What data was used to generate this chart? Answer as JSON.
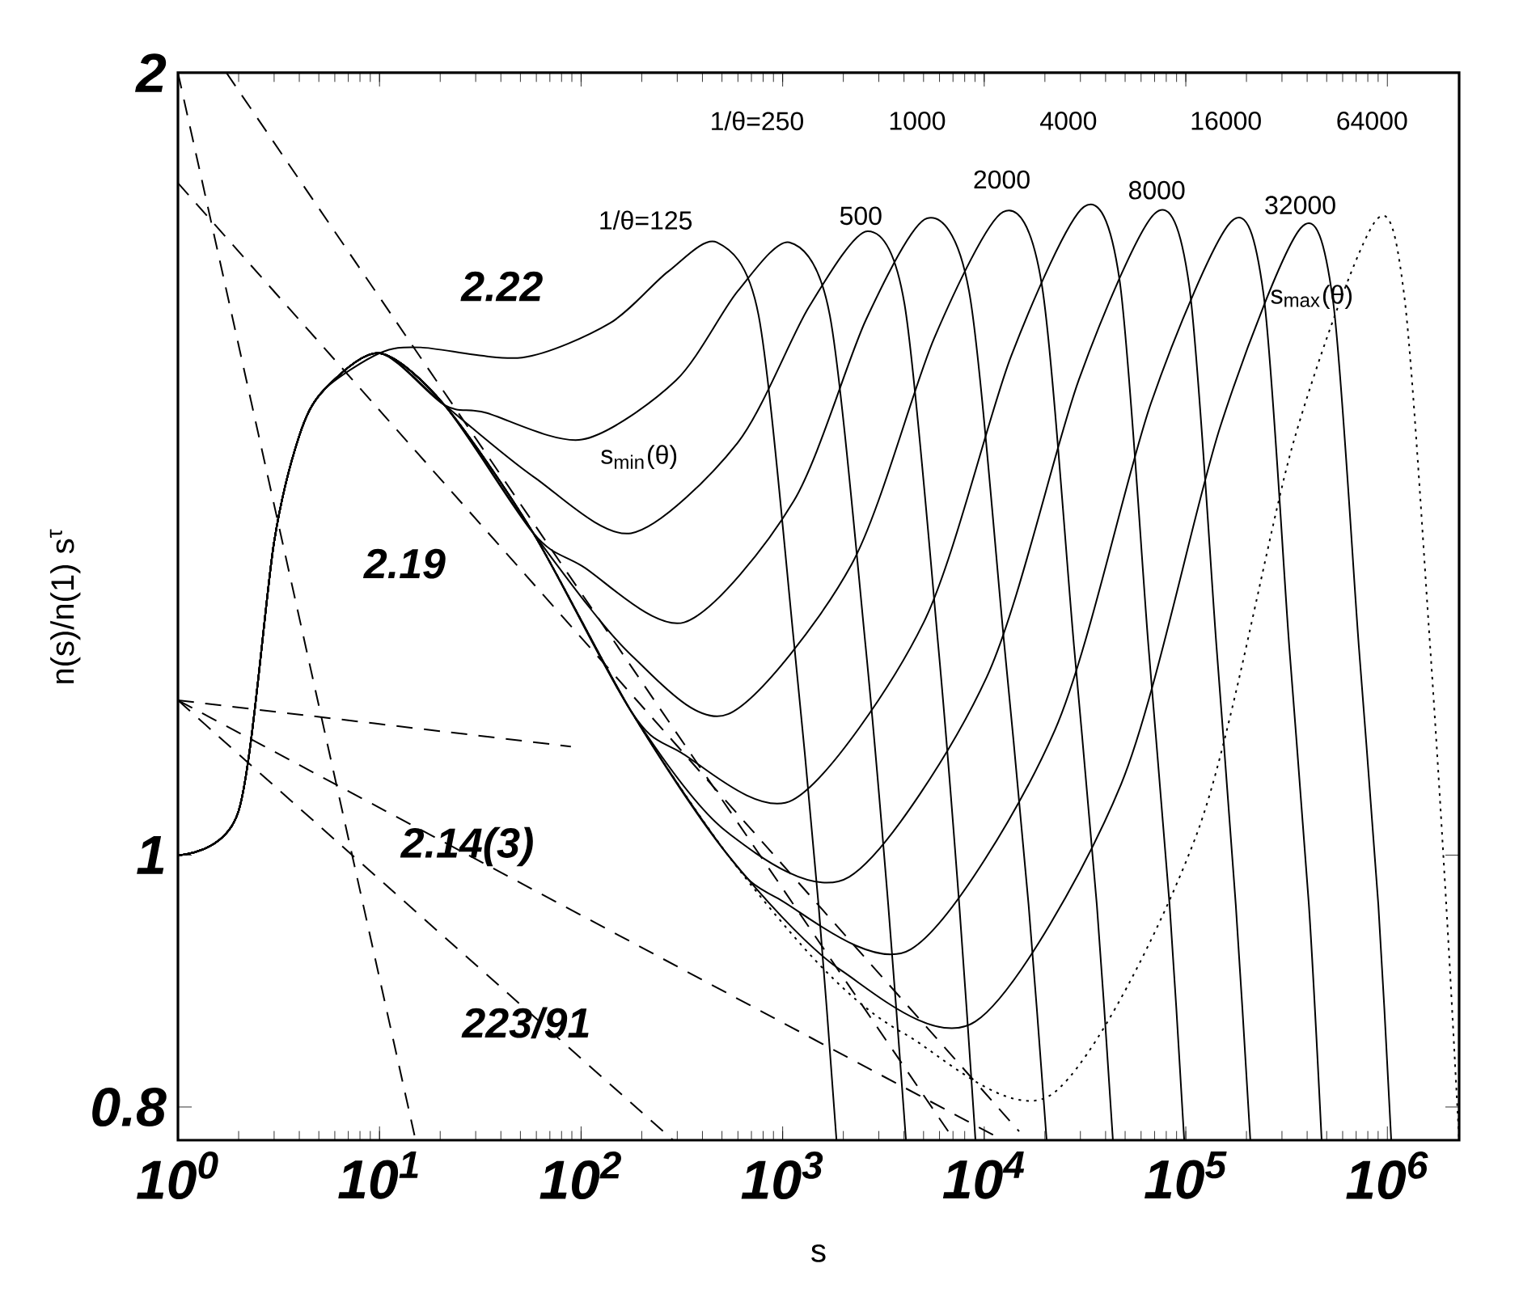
{
  "chart_data": {
    "type": "line",
    "xlabel": "s",
    "ylabel": "n(s)/n(1) s$^{τ}$",
    "log": "xy",
    "marker": "none",
    "xlim": [
      1,
      2270000
    ],
    "ylim": [
      0.777,
      2
    ],
    "xticks": [
      {
        "value": 1,
        "label": "10$^{0}$"
      },
      {
        "value": 10,
        "label": "10$^{1}$"
      },
      {
        "value": 100,
        "label": "10$^{2}$"
      },
      {
        "value": 1000,
        "label": "10$^{3}$"
      },
      {
        "value": 10000,
        "label": "10$^{4}$"
      },
      {
        "value": 100000,
        "label": "10$^{5}$"
      },
      {
        "value": 1000000,
        "label": "10$^{6}$"
      }
    ],
    "yticks": [
      0.8,
      1,
      2
    ],
    "series": [
      {
        "color": "#000000",
        "line_style": "solid",
        "x": [
          1,
          2,
          3,
          4,
          5.3,
          10,
          16,
          51,
          139,
          270,
          471,
          760,
          1143,
          1507,
          1850
        ],
        "values": [
          1,
          1.04,
          1.32,
          1.45,
          1.51,
          1.56,
          1.568,
          1.554,
          1.602,
          1.677,
          1.721,
          1.613,
          1.203,
          0.957,
          0.777
        ]
      },
      {
        "color": "#000000",
        "line_style": "solid",
        "x": [
          1,
          2,
          3,
          4,
          5.3,
          10,
          21,
          33.5,
          101,
          296,
          598,
          1080,
          1715,
          2580,
          3340,
          4090
        ],
        "values": [
          1,
          1.04,
          1.32,
          1.45,
          1.51,
          1.56,
          1.49,
          1.48,
          1.445,
          1.523,
          1.648,
          1.721,
          1.613,
          1.203,
          0.957,
          0.777
        ]
      },
      {
        "color": "#000000",
        "line_style": "solid",
        "x": [
          1,
          2,
          3,
          4,
          5.3,
          10,
          21,
          58.3,
          177,
          598,
          1349,
          2630,
          4020,
          5920,
          7520,
          9050
        ],
        "values": [
          1,
          1.04,
          1.32,
          1.45,
          1.51,
          1.56,
          1.49,
          1.398,
          1.33,
          1.441,
          1.625,
          1.738,
          1.63,
          1.203,
          0.957,
          0.777
        ]
      },
      {
        "color": "#000000",
        "line_style": "solid",
        "x": [
          1,
          2,
          3,
          4,
          5.3,
          10,
          21,
          58,
          101,
          325,
          1132,
          2600,
          5200,
          8410,
          12600,
          16600,
          20400
        ],
        "values": [
          1,
          1.04,
          1.32,
          1.45,
          1.51,
          1.56,
          1.49,
          1.33,
          1.292,
          1.229,
          1.368,
          1.608,
          1.758,
          1.648,
          1.203,
          0.957,
          0.777
        ]
      },
      {
        "color": "#000000",
        "line_style": "solid",
        "x": [
          1,
          2,
          3,
          4,
          5.3,
          10,
          21,
          58,
          177,
          535,
          2200,
          5650,
          12400,
          19300,
          27900,
          36200,
          43500
        ],
        "values": [
          1,
          1.04,
          1.32,
          1.45,
          1.51,
          1.56,
          1.49,
          1.33,
          1.194,
          1.133,
          1.294,
          1.581,
          1.768,
          1.658,
          1.203,
          0.957,
          0.777
        ]
      },
      {
        "color": "#000000",
        "line_style": "solid",
        "x": [
          1,
          2,
          3,
          4,
          5.3,
          10,
          21,
          58,
          177,
          308,
          1120,
          5010,
          13600,
          31200,
          46900,
          65300,
          83100,
          98200
        ],
        "values": [
          1,
          1.04,
          1.32,
          1.45,
          1.51,
          1.56,
          1.49,
          1.33,
          1.136,
          1.096,
          1.05,
          1.229,
          1.556,
          1.776,
          1.665,
          1.203,
          0.957,
          0.777
        ]
      },
      {
        "color": "#000000",
        "line_style": "solid",
        "x": [
          1,
          2,
          3,
          4,
          5.3,
          10,
          21,
          58,
          177,
          535,
          2140,
          10300,
          29500,
          70400,
          104000,
          142000,
          177000,
          209000
        ],
        "values": [
          1,
          1.04,
          1.32,
          1.45,
          1.51,
          1.56,
          1.49,
          1.33,
          1.136,
          1.02,
          0.981,
          1.171,
          1.524,
          1.766,
          1.656,
          1.203,
          0.957,
          0.777
        ]
      },
      {
        "color": "#000000",
        "line_style": "solid",
        "x": [
          1,
          2,
          3,
          4,
          5.3,
          10,
          21,
          58,
          177,
          535,
          933,
          4330,
          22400,
          67100,
          168000,
          243000,
          326000,
          408000,
          472000
        ],
        "values": [
          1,
          1.04,
          1.32,
          1.45,
          1.51,
          1.56,
          1.49,
          1.33,
          1.136,
          1.0,
          0.963,
          0.92,
          1.117,
          1.492,
          1.753,
          1.644,
          1.203,
          0.957,
          0.777
        ]
      },
      {
        "color": "#000000",
        "line_style": "solid",
        "x": [
          1,
          2,
          3,
          4,
          5.3,
          10,
          21,
          58,
          177,
          535,
          1950,
          9050,
          47800,
          148000,
          372000,
          537000,
          722000,
          902000,
          1045000
        ],
        "values": [
          1,
          1.04,
          1.32,
          1.45,
          1.51,
          1.56,
          1.49,
          1.33,
          1.136,
          1.0,
          0.903,
          0.863,
          1.065,
          1.461,
          1.743,
          1.635,
          1.203,
          0.957,
          0.777
        ]
      },
      {
        "color": "#000000",
        "line_style": "dotted",
        "x": [
          1,
          2,
          3,
          4,
          5.3,
          10,
          21,
          58,
          177,
          535,
          1620,
          4090,
          21600,
          114000,
          345000,
          869000,
          1210000,
          1630000,
          1960000,
          2270000
        ],
        "values": [
          1,
          1.04,
          1.32,
          1.45,
          1.51,
          1.56,
          1.49,
          1.33,
          1.136,
          1.0,
          0.903,
          0.853,
          0.809,
          1.02,
          1.445,
          1.753,
          1.644,
          1.203,
          0.957,
          0.777
        ]
      },
      {
        "color": "#000000",
        "line_style": "dashed",
        "x": [
          1,
          15.1
        ],
        "values": [
          2,
          0.777
        ]
      },
      {
        "color": "#000000",
        "line_style": "dashed",
        "x": [
          1.74,
          7100
        ],
        "values": [
          2,
          0.777
        ]
      },
      {
        "color": "#000000",
        "line_style": "dashed",
        "x": [
          1,
          14900
        ],
        "values": [
          1.814,
          0.783
        ]
      },
      {
        "color": "#000000",
        "line_style": "dashed",
        "x": [
          1,
          89
        ],
        "values": [
          1.147,
          1.101
        ]
      },
      {
        "color": "#000000",
        "line_style": "dashed",
        "x": [
          1,
          12400
        ],
        "values": [
          1.147,
          0.777
        ]
      },
      {
        "color": "#000000",
        "line_style": "dashed",
        "x": [
          1,
          286
        ],
        "values": [
          1.147,
          0.777
        ]
      }
    ],
    "annotations": [
      "1/θ=125",
      "1/θ=250",
      "500",
      "1000",
      "2000",
      "4000",
      "8000",
      "16000",
      "32000",
      "64000",
      "s$_{min}$(θ)",
      "s$_{max}$(θ)",
      "2.22",
      "2.19",
      "2.14(3)",
      "223/91"
    ]
  }
}
